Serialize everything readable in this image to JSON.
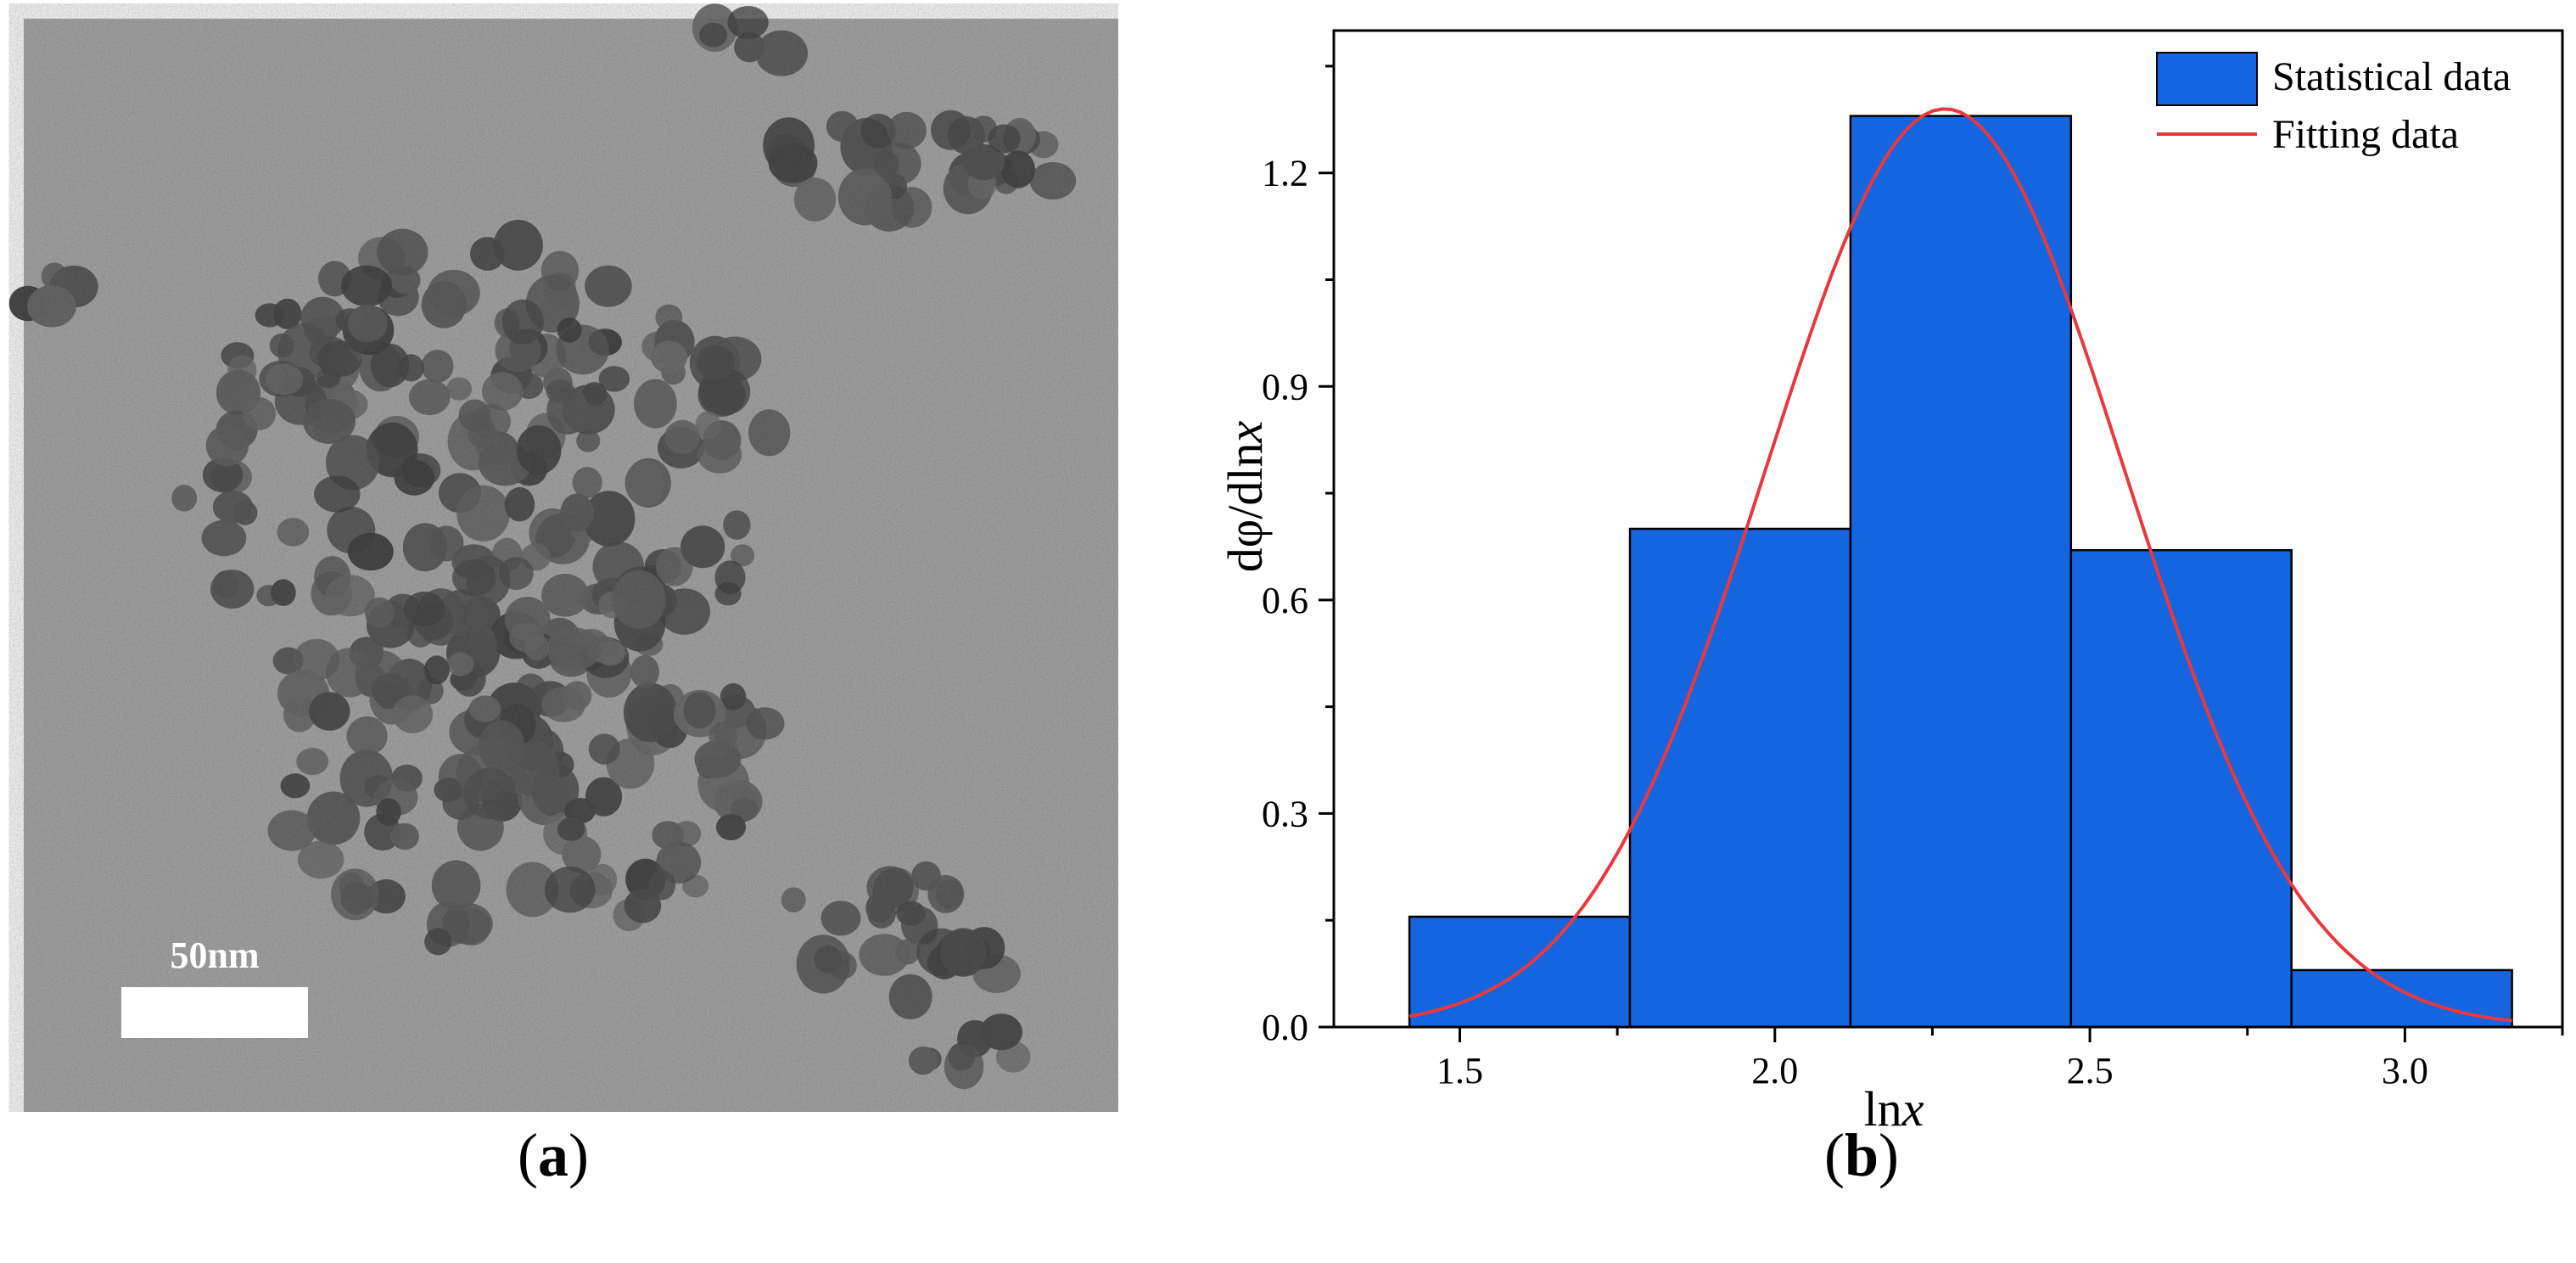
{
  "panel_a": {
    "scale_bar_label": "50nm",
    "image_kind": "TEM micrograph of nanoparticle cluster (grayscale)"
  },
  "captions": {
    "a_open": "(",
    "a_letter": "a",
    "a_close": ")",
    "b_open": "(",
    "b_letter": "b",
    "b_close": ")"
  },
  "chart_data": {
    "type": "bar",
    "title": "",
    "xlabel_main": "ln",
    "xlabel_italic": "x",
    "ylabel_main": "dφ/dln",
    "ylabel_italic": "x",
    "xlim": [
      1.3,
      3.25
    ],
    "ylim": [
      0.0,
      1.4
    ],
    "x_ticks": [
      1.5,
      2.0,
      2.5,
      3.0
    ],
    "x_tick_labels": [
      "1.5",
      "2.0",
      "2.5",
      "3.0"
    ],
    "y_ticks": [
      0.0,
      0.3,
      0.6,
      0.9,
      1.2
    ],
    "y_tick_labels": [
      "0.0",
      "0.3",
      "0.6",
      "0.9",
      "1.2"
    ],
    "bins": [
      {
        "x0": 1.42,
        "x1": 1.77,
        "value": 0.155
      },
      {
        "x0": 1.77,
        "x1": 2.12,
        "value": 0.7
      },
      {
        "x0": 2.12,
        "x1": 2.47,
        "value": 1.28
      },
      {
        "x0": 2.47,
        "x1": 2.82,
        "value": 0.67
      },
      {
        "x0": 2.82,
        "x1": 3.17,
        "value": 0.08
      }
    ],
    "fit": {
      "type": "gaussian",
      "peak": 1.29,
      "center": 2.27,
      "sigma": 0.285,
      "x_start": 1.42,
      "x_end": 3.17
    },
    "series": [
      {
        "name": "Statistical data",
        "color": "#1565E0"
      },
      {
        "name": "Fitting data",
        "color": "#E8393E"
      }
    ],
    "legend_position": "top-right",
    "grid": false
  }
}
